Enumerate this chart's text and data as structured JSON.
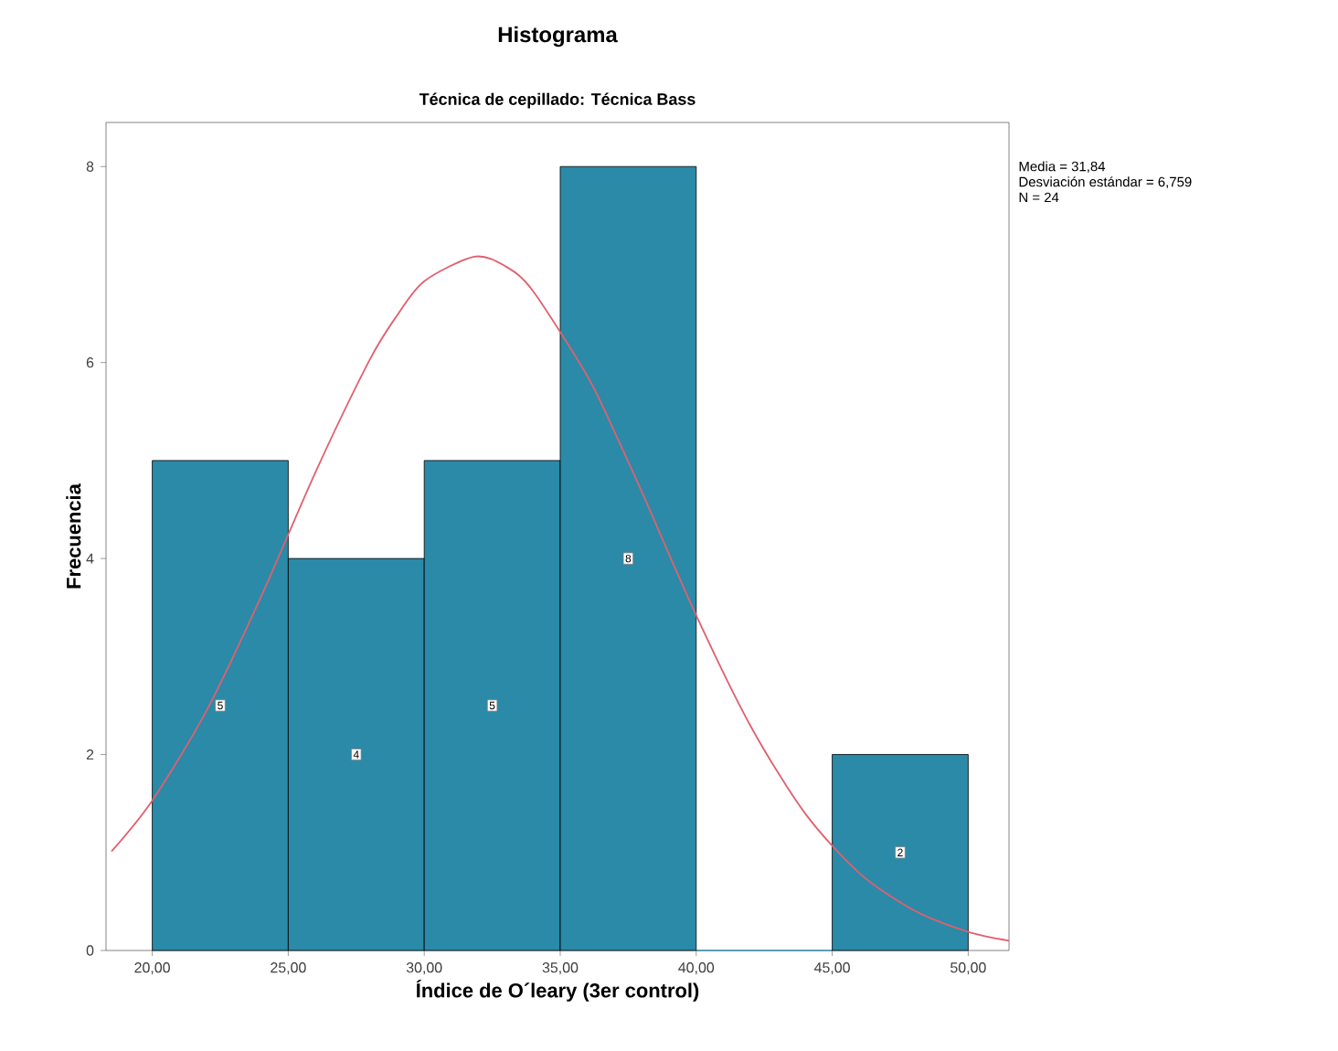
{
  "chart_data": {
    "type": "histogram",
    "title": "Histograma",
    "subtitle": "Técnica de cepillado: Técnica Bass",
    "xlabel": "Índice de O´leary (3er control)",
    "ylabel": "Frecuencia",
    "bins": [
      20,
      25,
      30,
      35,
      40,
      45,
      50
    ],
    "values": [
      5,
      4,
      5,
      8,
      0,
      2
    ],
    "color": "#2a8aa8",
    "value_labels": [
      "5",
      "4",
      "5",
      "8",
      null,
      "2"
    ],
    "series": [
      {
        "type": "line",
        "color": "#e0606e",
        "x": [
          18.5,
          20,
          22,
          24,
          26,
          28,
          29,
          30,
          31.84,
          33,
          34,
          36,
          37,
          38,
          40,
          42,
          44,
          46,
          48,
          50,
          51.5
        ],
        "values": [
          1.01,
          1.53,
          2.45,
          3.61,
          4.88,
          6.03,
          6.48,
          6.83,
          7.08,
          6.98,
          6.73,
          5.86,
          5.29,
          4.68,
          3.42,
          2.29,
          1.4,
          0.79,
          0.41,
          0.19,
          0.1
        ]
      }
    ],
    "xlim": [
      18.3,
      51.5
    ],
    "ylim": [
      0,
      8.45
    ],
    "xticks": [
      {
        "value": 20,
        "label": "20,00"
      },
      {
        "value": 25,
        "label": "25,00"
      },
      {
        "value": 30,
        "label": "30,00"
      },
      {
        "value": 35,
        "label": "35,00"
      },
      {
        "value": 40,
        "label": "40,00"
      },
      {
        "value": 45,
        "label": "45,00"
      },
      {
        "value": 50,
        "label": "50,00"
      }
    ],
    "yticks": [
      0,
      2,
      4,
      6,
      8
    ],
    "annotations": [
      "Media = 31,84",
      "Desviación estándar = 6,759",
      "N = 24"
    ]
  }
}
